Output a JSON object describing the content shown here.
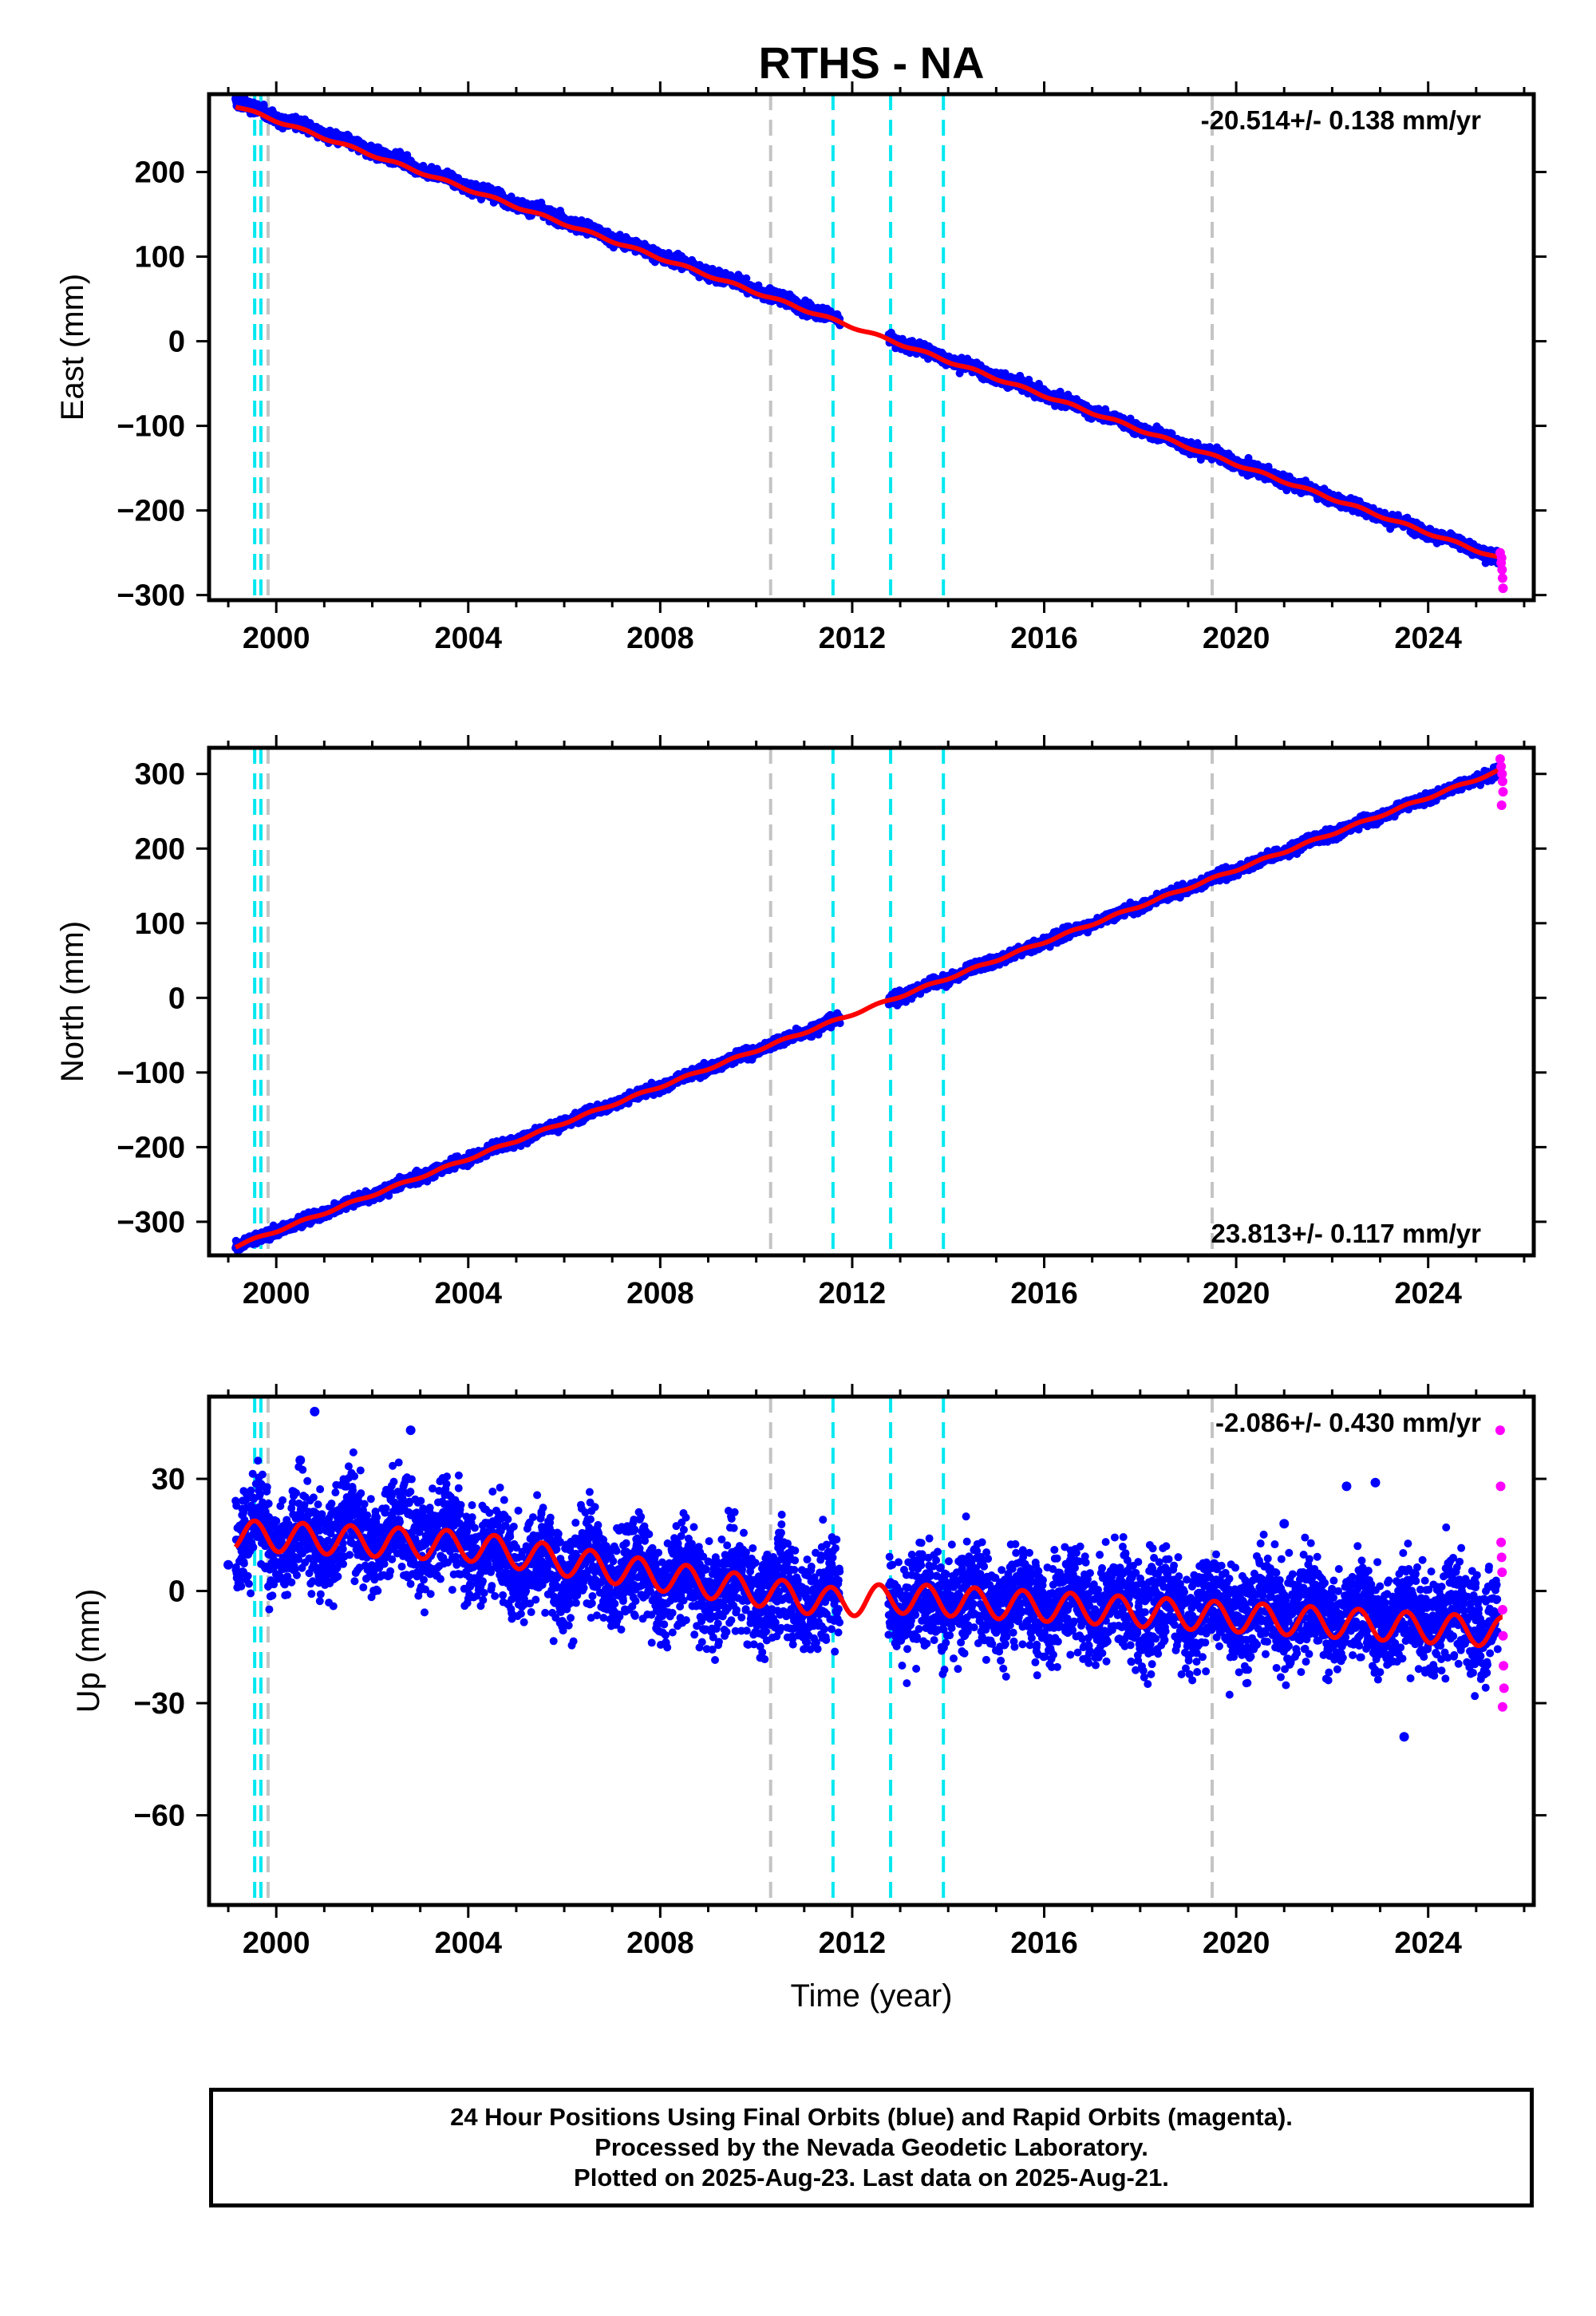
{
  "figure": {
    "title": "RTHS - NA",
    "xlabel": "Time (year)",
    "footer": [
      "24 Hour Positions Using Final Orbits (blue) and Rapid Orbits (magenta).",
      "Processed by the Nevada Geodetic Laboratory.",
      "Plotted on 2025-Aug-23. Last data on 2025-Aug-21."
    ]
  },
  "colors": {
    "final_orbits": "#0000ff",
    "rapid_orbits": "#ff00ff",
    "model_fit": "#ff0000",
    "equipment_change": "#00e8f0",
    "earthquake_event": "#c4c4c4",
    "frame": "#000000"
  },
  "chart_data": [
    {
      "type": "scatter",
      "ylabel": "East (mm)",
      "xlim": [
        1998.6,
        2026.2
      ],
      "ylim": [
        -306,
        292
      ],
      "xticks": [
        2000,
        2004,
        2008,
        2012,
        2016,
        2020,
        2024
      ],
      "yticks": [
        -300,
        -200,
        -100,
        0,
        100,
        200
      ],
      "grid": false,
      "rate_label": "-20.514+/- 0.138 mm/yr",
      "rate_position": "top-right",
      "vlines_equipment": [
        1999.55,
        1999.68,
        2011.6,
        2012.8,
        2013.9
      ],
      "vlines_event": [
        1999.83,
        2010.3,
        2019.5
      ],
      "data_start": 1999.15,
      "data_end": 2025.55,
      "rapid_start": 2025.45,
      "series": [
        {
          "name": "Final Orbits",
          "trend": {
            "x": [
              1999.15,
              2025.55
            ],
            "y": [
              283,
              -258
            ]
          },
          "scatter": 3.5
        },
        {
          "name": "Rapid Orbits",
          "points": [
            [
              2025.5,
              -250
            ],
            [
              2025.52,
              -262
            ],
            [
              2025.54,
              -270
            ],
            [
              2025.55,
              -280
            ],
            [
              2025.56,
              -292
            ],
            [
              2025.53,
              -256
            ]
          ]
        },
        {
          "name": "Model",
          "trend": {
            "x": [
              1999.15,
              2025.55
            ],
            "y": [
              278,
              -258
            ]
          },
          "seasonal_amplitude": 1.5
        }
      ]
    },
    {
      "type": "scatter",
      "ylabel": "North (mm)",
      "xlim": [
        1998.6,
        2026.2
      ],
      "ylim": [
        -345,
        335
      ],
      "xticks": [
        2000,
        2004,
        2008,
        2012,
        2016,
        2020,
        2024
      ],
      "yticks": [
        -300,
        -200,
        -100,
        0,
        100,
        200,
        300
      ],
      "grid": false,
      "rate_label": "23.813+/- 0.117 mm/yr",
      "rate_position": "bottom-right",
      "vlines_equipment": [
        1999.55,
        1999.68,
        2011.6,
        2012.8,
        2013.9
      ],
      "vlines_event": [
        1999.83,
        2010.3,
        2019.5
      ],
      "data_start": 1999.15,
      "data_end": 2025.55,
      "rapid_start": 2025.45,
      "series": [
        {
          "name": "Final Orbits",
          "trend": {
            "x": [
              1999.15,
              2025.55
            ],
            "y": [
              -333,
              306
            ]
          },
          "scatter": 3.5
        },
        {
          "name": "Rapid Orbits",
          "points": [
            [
              2025.5,
              320
            ],
            [
              2025.52,
              310
            ],
            [
              2025.54,
              300
            ],
            [
              2025.55,
              290
            ],
            [
              2025.56,
              276
            ],
            [
              2025.53,
              258
            ]
          ]
        },
        {
          "name": "Model",
          "trend": {
            "x": [
              1999.15,
              2025.55
            ],
            "y": [
              -333,
              306
            ]
          },
          "seasonal_amplitude": 1.5
        }
      ]
    },
    {
      "type": "scatter",
      "ylabel": "Up (mm)",
      "xlim": [
        1998.6,
        2026.2
      ],
      "ylim": [
        -84,
        52
      ],
      "xticks": [
        2000,
        2004,
        2008,
        2012,
        2016,
        2020,
        2024
      ],
      "yticks": [
        -60,
        -30,
        0,
        30
      ],
      "grid": false,
      "rate_label": "-2.086+/- 0.430 mm/yr",
      "rate_position": "top-right",
      "vlines_equipment": [
        1999.55,
        1999.68,
        2011.6,
        2012.8,
        2013.9
      ],
      "vlines_event": [
        1999.83,
        2010.3,
        2019.5
      ],
      "data_start": 1999.15,
      "data_end": 2025.55,
      "rapid_start": 2025.45,
      "series": [
        {
          "name": "Final Orbits",
          "trend": {
            "x": [
              1999.15,
              2004.0,
              2011.5,
              2013.0,
              2025.55
            ],
            "y": [
              15,
              10,
              -2,
              -2,
              -8
            ]
          },
          "scatter": 6
        },
        {
          "name": "Rapid Orbits",
          "points": [
            [
              2025.5,
              43
            ],
            [
              2025.51,
              28
            ],
            [
              2025.52,
              13
            ],
            [
              2025.53,
              9
            ],
            [
              2025.54,
              5
            ],
            [
              2025.55,
              -5
            ],
            [
              2025.56,
              -12
            ],
            [
              2025.57,
              -20
            ],
            [
              2025.58,
              -26
            ],
            [
              2025.55,
              -31
            ]
          ]
        },
        {
          "name": "Model",
          "trend": {
            "x": [
              1999.15,
              2004.0,
              2011.5,
              2013.0,
              2025.55
            ],
            "y": [
              15,
              12,
              -3,
              -2,
              -11
            ]
          },
          "seasonal_amplitude": 4
        }
      ],
      "outliers": [
        [
          1999.0,
          7
        ],
        [
          2000.8,
          48
        ],
        [
          2002.8,
          43
        ],
        [
          2023.5,
          -39
        ],
        [
          2022.3,
          28
        ],
        [
          2022.9,
          29
        ],
        [
          2021.0,
          18
        ],
        [
          1999.3,
          5
        ],
        [
          2000.5,
          35
        ]
      ]
    }
  ]
}
